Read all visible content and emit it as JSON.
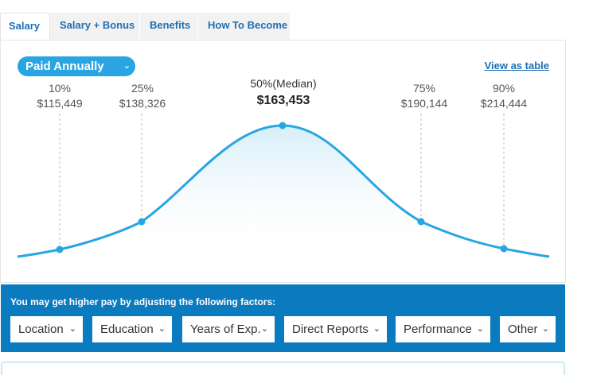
{
  "tabs": [
    {
      "label": "Salary"
    },
    {
      "label": "Salary + Bonus"
    },
    {
      "label": "Benefits"
    },
    {
      "label": "How To Become"
    }
  ],
  "pay_period": {
    "selected": "Paid Annually",
    "chevron": "chevron-down-icon"
  },
  "view_as_table": "View as table",
  "percentiles": [
    {
      "label": "10%",
      "amount": "$115,449"
    },
    {
      "label": "25%",
      "amount": "$138,326"
    },
    {
      "label": "50%(Median)",
      "amount": "$163,453"
    },
    {
      "label": "75%",
      "amount": "$190,144"
    },
    {
      "label": "90%",
      "amount": "$214,444"
    }
  ],
  "factors": {
    "title": "You may get higher pay by adjusting the following factors:",
    "buttons": [
      {
        "label": "Location"
      },
      {
        "label": "Education"
      },
      {
        "label": "Years of Exp."
      },
      {
        "label": "Direct Reports"
      },
      {
        "label": "Performance"
      },
      {
        "label": "Other"
      }
    ]
  },
  "colors": {
    "accent": "#29a5e3",
    "link": "#1f6fb2",
    "factors_bg": "#0b7bc0"
  }
}
